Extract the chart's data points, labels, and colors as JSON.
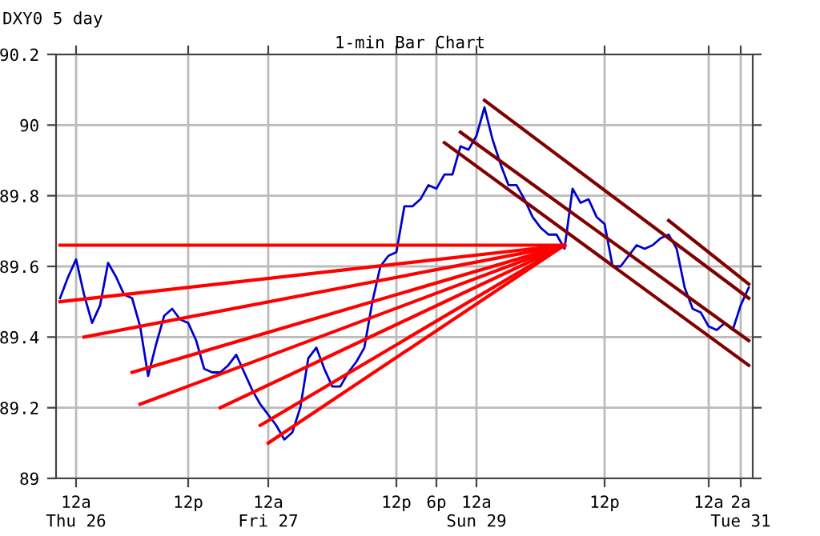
{
  "chart_data": {
    "type": "line",
    "title": "1-min Bar Chart",
    "subtitle": "DXY0 5 day",
    "categories": [
      null,
      null,
      "12a\nThu 26",
      null,
      null,
      null,
      null,
      null,
      null,
      null,
      null,
      null,
      null,
      null,
      null,
      null,
      "12p",
      null,
      null,
      null,
      null,
      null,
      null,
      null,
      null,
      null,
      "12a\nFri 27",
      null,
      null,
      null,
      null,
      null,
      null,
      null,
      null,
      null,
      null,
      null,
      null,
      null,
      null,
      null,
      "12p",
      null,
      null,
      null,
      null,
      "6p",
      null,
      null,
      null,
      null,
      "12a\nSun 29",
      null,
      null,
      null,
      null,
      null,
      null,
      null,
      null,
      null,
      null,
      null,
      null,
      null,
      null,
      null,
      "12p",
      null,
      null,
      null,
      null,
      null,
      null,
      null,
      null,
      null,
      null,
      null,
      null,
      "12a",
      null,
      null,
      null,
      "2a\nTue 31",
      null
    ],
    "ylim": [
      89,
      90.2
    ],
    "yticks": [
      89,
      89.2,
      89.4,
      89.6,
      89.8,
      90,
      90.2
    ],
    "grid": true,
    "marker": "none",
    "line_style": "solid",
    "series": [
      {
        "color": "#0000cc",
        "values": [
          89.51,
          89.57,
          89.62,
          89.52,
          89.44,
          89.49,
          89.61,
          89.57,
          89.52,
          89.51,
          89.43,
          89.29,
          89.38,
          89.46,
          89.48,
          89.45,
          89.44,
          89.39,
          89.31,
          89.3,
          89.3,
          89.32,
          89.35,
          89.3,
          89.25,
          89.21,
          89.18,
          89.15,
          89.11,
          89.13,
          89.2,
          89.34,
          89.37,
          89.31,
          89.26,
          89.26,
          89.3,
          89.33,
          89.37,
          89.5,
          89.6,
          89.63,
          89.64,
          89.77,
          89.77,
          89.79,
          89.83,
          89.82,
          89.86,
          89.86,
          89.94,
          89.93,
          89.97,
          90.05,
          89.96,
          89.89,
          89.83,
          89.83,
          89.79,
          89.74,
          89.71,
          89.69,
          89.69,
          89.65,
          89.82,
          89.78,
          89.79,
          89.74,
          89.72,
          89.6,
          89.6,
          89.63,
          89.66,
          89.65,
          89.66,
          89.68,
          89.69,
          89.65,
          89.54,
          89.48,
          89.47,
          89.43,
          89.42,
          89.44,
          89.42,
          89.49,
          89.54
        ]
      },
      {
        "color": "#ff0000",
        "values": [
          89.66,
          null,
          null,
          null,
          null,
          null,
          null,
          null,
          null,
          null,
          null,
          null,
          null,
          null,
          null,
          null,
          null,
          null,
          null,
          null,
          null,
          null,
          null,
          null,
          null,
          null,
          null,
          null,
          null,
          null,
          null,
          null,
          null,
          null,
          null,
          null,
          null,
          null,
          null,
          null,
          null,
          null,
          null,
          null,
          null,
          null,
          null,
          null,
          null,
          null,
          null,
          null,
          null,
          null,
          null,
          null,
          null,
          null,
          null,
          null,
          null,
          null,
          null,
          89.66,
          null,
          null,
          null,
          null,
          null,
          null,
          null,
          null,
          null,
          null,
          null,
          null,
          null,
          null,
          null,
          null,
          null,
          null,
          null,
          null,
          null,
          null,
          null
        ]
      },
      {
        "color": "#ff0000",
        "values": [
          89.5,
          null,
          null,
          null,
          null,
          null,
          null,
          null,
          null,
          null,
          null,
          null,
          null,
          null,
          null,
          null,
          null,
          null,
          null,
          null,
          null,
          null,
          null,
          null,
          null,
          null,
          null,
          null,
          null,
          null,
          null,
          null,
          null,
          null,
          null,
          null,
          null,
          null,
          null,
          null,
          null,
          null,
          null,
          null,
          null,
          null,
          null,
          null,
          null,
          null,
          null,
          null,
          null,
          null,
          null,
          null,
          null,
          null,
          null,
          null,
          null,
          null,
          null,
          89.66,
          null,
          null,
          null,
          null,
          null,
          null,
          null,
          null,
          null,
          null,
          null,
          null,
          null,
          null,
          null,
          null,
          null,
          null,
          null,
          null,
          null,
          null,
          null
        ]
      },
      {
        "color": "#ff0000",
        "values": [
          null,
          null,
          null,
          89.4,
          null,
          null,
          null,
          null,
          null,
          null,
          null,
          null,
          null,
          null,
          null,
          null,
          null,
          null,
          null,
          null,
          null,
          null,
          null,
          null,
          null,
          null,
          null,
          null,
          null,
          null,
          null,
          null,
          null,
          null,
          null,
          null,
          null,
          null,
          null,
          null,
          null,
          null,
          null,
          null,
          null,
          null,
          null,
          null,
          null,
          null,
          null,
          null,
          null,
          null,
          null,
          null,
          null,
          null,
          null,
          null,
          null,
          null,
          null,
          89.66,
          null,
          null,
          null,
          null,
          null,
          null,
          null,
          null,
          null,
          null,
          null,
          null,
          null,
          null,
          null,
          null,
          null,
          null,
          null,
          null,
          null,
          null,
          null
        ]
      },
      {
        "color": "#ff0000",
        "values": [
          null,
          null,
          null,
          null,
          null,
          null,
          null,
          null,
          null,
          89.3,
          null,
          null,
          null,
          null,
          null,
          null,
          null,
          null,
          null,
          null,
          null,
          null,
          null,
          null,
          null,
          null,
          null,
          null,
          null,
          null,
          null,
          null,
          null,
          null,
          null,
          null,
          null,
          null,
          null,
          null,
          null,
          null,
          null,
          null,
          null,
          null,
          null,
          null,
          null,
          null,
          null,
          null,
          null,
          null,
          null,
          null,
          null,
          null,
          null,
          null,
          null,
          null,
          null,
          89.66,
          null,
          null,
          null,
          null,
          null,
          null,
          null,
          null,
          null,
          null,
          null,
          null,
          null,
          null,
          null,
          null,
          null,
          null,
          null,
          null,
          null,
          null,
          null
        ]
      },
      {
        "color": "#ff0000",
        "values": [
          null,
          null,
          null,
          null,
          null,
          null,
          null,
          null,
          null,
          null,
          89.21,
          null,
          null,
          null,
          null,
          null,
          null,
          null,
          null,
          null,
          null,
          null,
          null,
          null,
          null,
          null,
          null,
          null,
          null,
          null,
          null,
          null,
          null,
          null,
          null,
          null,
          null,
          null,
          null,
          null,
          null,
          null,
          null,
          null,
          null,
          null,
          null,
          null,
          null,
          null,
          null,
          null,
          null,
          null,
          null,
          null,
          null,
          null,
          null,
          null,
          null,
          null,
          null,
          89.66,
          null,
          null,
          null,
          null,
          null,
          null,
          null,
          null,
          null,
          null,
          null,
          null,
          null,
          null,
          null,
          null,
          null,
          null,
          null,
          null,
          null,
          null,
          null
        ]
      },
      {
        "color": "#ff0000",
        "values": [
          null,
          null,
          null,
          null,
          null,
          null,
          null,
          null,
          null,
          null,
          null,
          null,
          null,
          null,
          null,
          null,
          null,
          null,
          null,
          null,
          89.2,
          null,
          null,
          null,
          null,
          null,
          null,
          null,
          null,
          null,
          null,
          null,
          null,
          null,
          null,
          null,
          null,
          null,
          null,
          null,
          null,
          null,
          null,
          null,
          null,
          null,
          null,
          null,
          null,
          null,
          null,
          null,
          null,
          null,
          null,
          null,
          null,
          null,
          null,
          null,
          null,
          null,
          null,
          89.66,
          null,
          null,
          null,
          null,
          null,
          null,
          null,
          null,
          null,
          null,
          null,
          null,
          null,
          null,
          null,
          null,
          null,
          null,
          null,
          null,
          null,
          null,
          null
        ]
      },
      {
        "color": "#ff0000",
        "values": [
          null,
          null,
          null,
          null,
          null,
          null,
          null,
          null,
          null,
          null,
          null,
          null,
          null,
          null,
          null,
          null,
          null,
          null,
          null,
          null,
          null,
          null,
          null,
          null,
          null,
          89.15,
          null,
          null,
          null,
          null,
          null,
          null,
          null,
          null,
          null,
          null,
          null,
          null,
          null,
          null,
          null,
          null,
          null,
          null,
          null,
          null,
          null,
          null,
          null,
          null,
          null,
          null,
          null,
          null,
          null,
          null,
          null,
          null,
          null,
          null,
          null,
          null,
          null,
          89.66,
          null,
          null,
          null,
          null,
          null,
          null,
          null,
          null,
          null,
          null,
          null,
          null,
          null,
          null,
          null,
          null,
          null,
          null,
          null,
          null,
          null,
          null,
          null
        ]
      },
      {
        "color": "#ff0000",
        "values": [
          null,
          null,
          null,
          null,
          null,
          null,
          null,
          null,
          null,
          null,
          null,
          null,
          null,
          null,
          null,
          null,
          null,
          null,
          null,
          null,
          null,
          null,
          null,
          null,
          null,
          null,
          89.1,
          null,
          null,
          null,
          null,
          null,
          null,
          null,
          null,
          null,
          null,
          null,
          null,
          null,
          null,
          null,
          null,
          null,
          null,
          null,
          null,
          null,
          null,
          null,
          null,
          null,
          null,
          null,
          null,
          null,
          null,
          null,
          null,
          null,
          null,
          null,
          null,
          89.66,
          null,
          null,
          null,
          null,
          null,
          null,
          null,
          null,
          null,
          null,
          null,
          null,
          null,
          null,
          null,
          null,
          null,
          null,
          null,
          null,
          null,
          null,
          null
        ]
      },
      {
        "color": "#800000",
        "values": [
          null,
          null,
          null,
          null,
          null,
          null,
          null,
          null,
          null,
          null,
          null,
          null,
          null,
          null,
          null,
          null,
          null,
          null,
          null,
          null,
          null,
          null,
          null,
          null,
          null,
          null,
          null,
          null,
          null,
          null,
          null,
          null,
          null,
          null,
          null,
          null,
          null,
          null,
          null,
          null,
          null,
          null,
          null,
          null,
          null,
          null,
          null,
          null,
          null,
          null,
          null,
          null,
          null,
          90.07,
          null,
          null,
          null,
          null,
          null,
          null,
          null,
          null,
          null,
          null,
          null,
          null,
          null,
          null,
          null,
          null,
          null,
          null,
          null,
          null,
          null,
          null,
          null,
          null,
          null,
          null,
          null,
          null,
          null,
          null,
          null,
          null,
          89.51
        ]
      },
      {
        "color": "#800000",
        "values": [
          null,
          null,
          null,
          null,
          null,
          null,
          null,
          null,
          null,
          null,
          null,
          null,
          null,
          null,
          null,
          null,
          null,
          null,
          null,
          null,
          null,
          null,
          null,
          null,
          null,
          null,
          null,
          null,
          null,
          null,
          null,
          null,
          null,
          null,
          null,
          null,
          null,
          null,
          null,
          null,
          null,
          null,
          null,
          null,
          null,
          null,
          null,
          null,
          null,
          null,
          89.98,
          null,
          null,
          null,
          null,
          null,
          null,
          null,
          null,
          null,
          null,
          null,
          null,
          null,
          null,
          null,
          null,
          null,
          null,
          null,
          null,
          null,
          null,
          null,
          null,
          null,
          null,
          null,
          null,
          null,
          null,
          null,
          null,
          null,
          null,
          null,
          89.39
        ]
      },
      {
        "color": "#800000",
        "values": [
          null,
          null,
          null,
          null,
          null,
          null,
          null,
          null,
          null,
          null,
          null,
          null,
          null,
          null,
          null,
          null,
          null,
          null,
          null,
          null,
          null,
          null,
          null,
          null,
          null,
          null,
          null,
          null,
          null,
          null,
          null,
          null,
          null,
          null,
          null,
          null,
          null,
          null,
          null,
          null,
          null,
          null,
          null,
          null,
          null,
          null,
          null,
          null,
          89.95,
          null,
          null,
          null,
          null,
          null,
          null,
          null,
          null,
          null,
          null,
          null,
          null,
          null,
          null,
          null,
          null,
          null,
          null,
          null,
          null,
          null,
          null,
          null,
          null,
          null,
          null,
          null,
          null,
          null,
          null,
          null,
          null,
          null,
          null,
          null,
          null,
          null,
          89.32
        ]
      },
      {
        "color": "#800000",
        "values": [
          null,
          null,
          null,
          null,
          null,
          null,
          null,
          null,
          null,
          null,
          null,
          null,
          null,
          null,
          null,
          null,
          null,
          null,
          null,
          null,
          null,
          null,
          null,
          null,
          null,
          null,
          null,
          null,
          null,
          null,
          null,
          null,
          null,
          null,
          null,
          null,
          null,
          null,
          null,
          null,
          null,
          null,
          null,
          null,
          null,
          null,
          null,
          null,
          null,
          null,
          null,
          null,
          null,
          null,
          null,
          null,
          null,
          null,
          null,
          null,
          null,
          null,
          null,
          null,
          null,
          null,
          null,
          null,
          null,
          null,
          null,
          null,
          null,
          null,
          null,
          null,
          89.73,
          null,
          null,
          null,
          null,
          null,
          null,
          null,
          null,
          null,
          89.55
        ]
      }
    ]
  }
}
